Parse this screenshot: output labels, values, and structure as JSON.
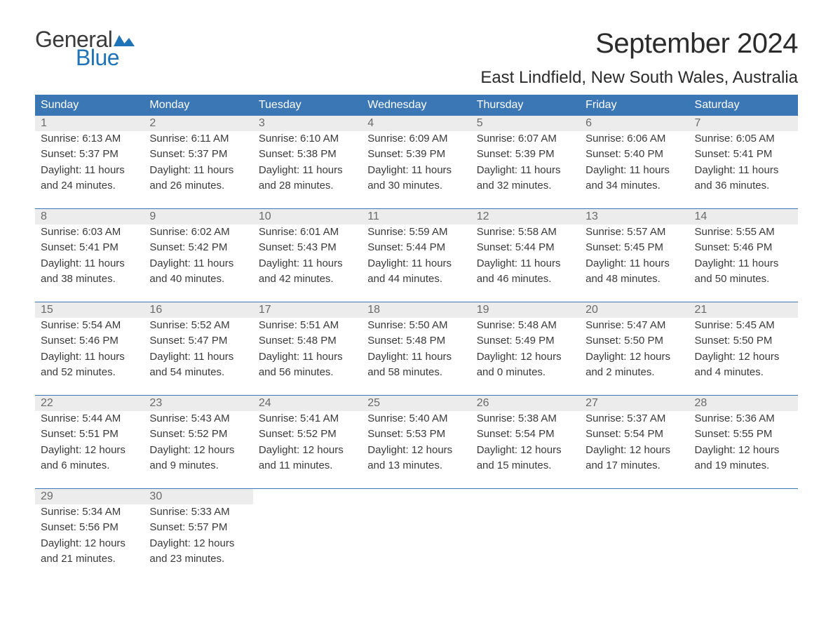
{
  "logo": {
    "text_general": "General",
    "text_blue": "Blue",
    "flag_color": "#1f73b7"
  },
  "title": "September 2024",
  "location": "East Lindfield, New South Wales, Australia",
  "colors": {
    "header_bg": "#3b77b5",
    "header_text": "#ffffff",
    "daynum_bg": "#ececec",
    "daynum_text": "#6a6a6a",
    "body_text": "#3a3a3a",
    "rule": "#3b77b5",
    "page_bg": "#ffffff"
  },
  "day_headers": [
    "Sunday",
    "Monday",
    "Tuesday",
    "Wednesday",
    "Thursday",
    "Friday",
    "Saturday"
  ],
  "weeks": [
    [
      {
        "num": "1",
        "sunrise": "Sunrise: 6:13 AM",
        "sunset": "Sunset: 5:37 PM",
        "day1": "Daylight: 11 hours",
        "day2": "and 24 minutes."
      },
      {
        "num": "2",
        "sunrise": "Sunrise: 6:11 AM",
        "sunset": "Sunset: 5:37 PM",
        "day1": "Daylight: 11 hours",
        "day2": "and 26 minutes."
      },
      {
        "num": "3",
        "sunrise": "Sunrise: 6:10 AM",
        "sunset": "Sunset: 5:38 PM",
        "day1": "Daylight: 11 hours",
        "day2": "and 28 minutes."
      },
      {
        "num": "4",
        "sunrise": "Sunrise: 6:09 AM",
        "sunset": "Sunset: 5:39 PM",
        "day1": "Daylight: 11 hours",
        "day2": "and 30 minutes."
      },
      {
        "num": "5",
        "sunrise": "Sunrise: 6:07 AM",
        "sunset": "Sunset: 5:39 PM",
        "day1": "Daylight: 11 hours",
        "day2": "and 32 minutes."
      },
      {
        "num": "6",
        "sunrise": "Sunrise: 6:06 AM",
        "sunset": "Sunset: 5:40 PM",
        "day1": "Daylight: 11 hours",
        "day2": "and 34 minutes."
      },
      {
        "num": "7",
        "sunrise": "Sunrise: 6:05 AM",
        "sunset": "Sunset: 5:41 PM",
        "day1": "Daylight: 11 hours",
        "day2": "and 36 minutes."
      }
    ],
    [
      {
        "num": "8",
        "sunrise": "Sunrise: 6:03 AM",
        "sunset": "Sunset: 5:41 PM",
        "day1": "Daylight: 11 hours",
        "day2": "and 38 minutes."
      },
      {
        "num": "9",
        "sunrise": "Sunrise: 6:02 AM",
        "sunset": "Sunset: 5:42 PM",
        "day1": "Daylight: 11 hours",
        "day2": "and 40 minutes."
      },
      {
        "num": "10",
        "sunrise": "Sunrise: 6:01 AM",
        "sunset": "Sunset: 5:43 PM",
        "day1": "Daylight: 11 hours",
        "day2": "and 42 minutes."
      },
      {
        "num": "11",
        "sunrise": "Sunrise: 5:59 AM",
        "sunset": "Sunset: 5:44 PM",
        "day1": "Daylight: 11 hours",
        "day2": "and 44 minutes."
      },
      {
        "num": "12",
        "sunrise": "Sunrise: 5:58 AM",
        "sunset": "Sunset: 5:44 PM",
        "day1": "Daylight: 11 hours",
        "day2": "and 46 minutes."
      },
      {
        "num": "13",
        "sunrise": "Sunrise: 5:57 AM",
        "sunset": "Sunset: 5:45 PM",
        "day1": "Daylight: 11 hours",
        "day2": "and 48 minutes."
      },
      {
        "num": "14",
        "sunrise": "Sunrise: 5:55 AM",
        "sunset": "Sunset: 5:46 PM",
        "day1": "Daylight: 11 hours",
        "day2": "and 50 minutes."
      }
    ],
    [
      {
        "num": "15",
        "sunrise": "Sunrise: 5:54 AM",
        "sunset": "Sunset: 5:46 PM",
        "day1": "Daylight: 11 hours",
        "day2": "and 52 minutes."
      },
      {
        "num": "16",
        "sunrise": "Sunrise: 5:52 AM",
        "sunset": "Sunset: 5:47 PM",
        "day1": "Daylight: 11 hours",
        "day2": "and 54 minutes."
      },
      {
        "num": "17",
        "sunrise": "Sunrise: 5:51 AM",
        "sunset": "Sunset: 5:48 PM",
        "day1": "Daylight: 11 hours",
        "day2": "and 56 minutes."
      },
      {
        "num": "18",
        "sunrise": "Sunrise: 5:50 AM",
        "sunset": "Sunset: 5:48 PM",
        "day1": "Daylight: 11 hours",
        "day2": "and 58 minutes."
      },
      {
        "num": "19",
        "sunrise": "Sunrise: 5:48 AM",
        "sunset": "Sunset: 5:49 PM",
        "day1": "Daylight: 12 hours",
        "day2": "and 0 minutes."
      },
      {
        "num": "20",
        "sunrise": "Sunrise: 5:47 AM",
        "sunset": "Sunset: 5:50 PM",
        "day1": "Daylight: 12 hours",
        "day2": "and 2 minutes."
      },
      {
        "num": "21",
        "sunrise": "Sunrise: 5:45 AM",
        "sunset": "Sunset: 5:50 PM",
        "day1": "Daylight: 12 hours",
        "day2": "and 4 minutes."
      }
    ],
    [
      {
        "num": "22",
        "sunrise": "Sunrise: 5:44 AM",
        "sunset": "Sunset: 5:51 PM",
        "day1": "Daylight: 12 hours",
        "day2": "and 6 minutes."
      },
      {
        "num": "23",
        "sunrise": "Sunrise: 5:43 AM",
        "sunset": "Sunset: 5:52 PM",
        "day1": "Daylight: 12 hours",
        "day2": "and 9 minutes."
      },
      {
        "num": "24",
        "sunrise": "Sunrise: 5:41 AM",
        "sunset": "Sunset: 5:52 PM",
        "day1": "Daylight: 12 hours",
        "day2": "and 11 minutes."
      },
      {
        "num": "25",
        "sunrise": "Sunrise: 5:40 AM",
        "sunset": "Sunset: 5:53 PM",
        "day1": "Daylight: 12 hours",
        "day2": "and 13 minutes."
      },
      {
        "num": "26",
        "sunrise": "Sunrise: 5:38 AM",
        "sunset": "Sunset: 5:54 PM",
        "day1": "Daylight: 12 hours",
        "day2": "and 15 minutes."
      },
      {
        "num": "27",
        "sunrise": "Sunrise: 5:37 AM",
        "sunset": "Sunset: 5:54 PM",
        "day1": "Daylight: 12 hours",
        "day2": "and 17 minutes."
      },
      {
        "num": "28",
        "sunrise": "Sunrise: 5:36 AM",
        "sunset": "Sunset: 5:55 PM",
        "day1": "Daylight: 12 hours",
        "day2": "and 19 minutes."
      }
    ],
    [
      {
        "num": "29",
        "sunrise": "Sunrise: 5:34 AM",
        "sunset": "Sunset: 5:56 PM",
        "day1": "Daylight: 12 hours",
        "day2": "and 21 minutes."
      },
      {
        "num": "30",
        "sunrise": "Sunrise: 5:33 AM",
        "sunset": "Sunset: 5:57 PM",
        "day1": "Daylight: 12 hours",
        "day2": "and 23 minutes."
      },
      null,
      null,
      null,
      null,
      null
    ]
  ]
}
